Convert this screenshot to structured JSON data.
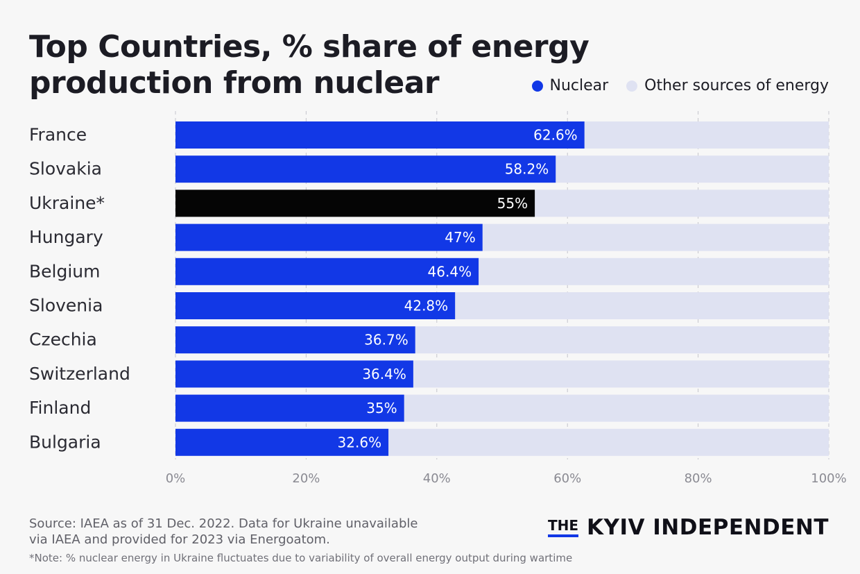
{
  "title_lines": [
    "Top Countries, % share of energy",
    "production from nuclear"
  ],
  "legend": [
    {
      "label": "Nuclear",
      "color": "#1238e6"
    },
    {
      "label": "Other sources of energy",
      "color": "#dfe2f2"
    }
  ],
  "colors": {
    "nuclear": "#1238e6",
    "highlight": "#050505",
    "other": "#dfe2f2",
    "grid": "#c4c4cc",
    "axis_text": "#8a8a92",
    "label_text": "#2a2a32"
  },
  "chart_data": {
    "type": "bar",
    "orientation": "horizontal",
    "stacked": true,
    "title": "Top Countries, % share of energy production from nuclear",
    "categories": [
      "France",
      "Slovakia",
      "Ukraine*",
      "Hungary",
      "Belgium",
      "Slovenia",
      "Czechia",
      "Switzerland",
      "Finland",
      "Bulgaria"
    ],
    "series": [
      {
        "name": "Nuclear",
        "values": [
          62.6,
          58.2,
          55,
          47,
          46.4,
          42.8,
          36.7,
          36.4,
          35,
          32.6
        ]
      },
      {
        "name": "Other sources of energy",
        "values": [
          37.4,
          41.8,
          45,
          53,
          53.6,
          57.2,
          63.3,
          63.6,
          65,
          67.4
        ]
      }
    ],
    "data_labels": [
      "62.6%",
      "58.2%",
      "55%",
      "47%",
      "46.4%",
      "42.8%",
      "36.7%",
      "36.4%",
      "35%",
      "32.6%"
    ],
    "highlight_category": "Ukraine*",
    "xlim": [
      0,
      100
    ],
    "xticks": [
      0,
      20,
      40,
      60,
      80,
      100
    ],
    "xtick_labels": [
      "0%",
      "20%",
      "40%",
      "60%",
      "80%",
      "100%"
    ],
    "grid": true,
    "legend_position": "top-right"
  },
  "footer": {
    "source_line1": "Source: IAEA as of 31 Dec. 2022. Data for Ukraine unavailable",
    "source_line2": "via IAEA and provided for 2023 via Energoatom.",
    "note": "*Note: % nuclear energy in Ukraine fluctuates due to variability of overall energy output during wartime"
  },
  "brand": {
    "the": "THE",
    "name": "KYIV INDEPENDENT"
  }
}
